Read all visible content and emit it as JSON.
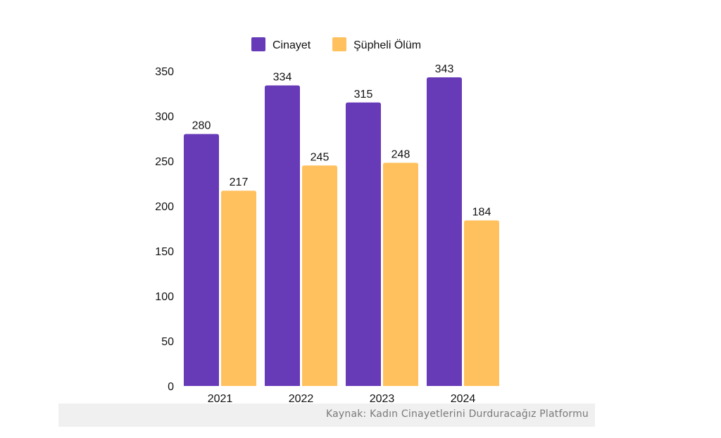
{
  "chart_data": {
    "type": "bar",
    "categories": [
      "2021",
      "2022",
      "2023",
      "2024"
    ],
    "series": [
      {
        "name": "Cinayet",
        "values": [
          280,
          334,
          315,
          343
        ],
        "color": "#673ab7"
      },
      {
        "name": "Şüpheli Ölüm",
        "values": [
          217,
          245,
          248,
          184
        ],
        "color": "#ffc15e"
      }
    ],
    "ylim": [
      0,
      350
    ],
    "yticks": [
      0,
      50,
      100,
      150,
      200,
      250,
      300,
      350
    ],
    "grid": false,
    "legend": "top-center",
    "data_labels": true,
    "title": "",
    "xlabel": "",
    "ylabel": ""
  },
  "source": {
    "text": "Kaynak: Kadın Cinayetlerini Durduracağız Platformu"
  }
}
